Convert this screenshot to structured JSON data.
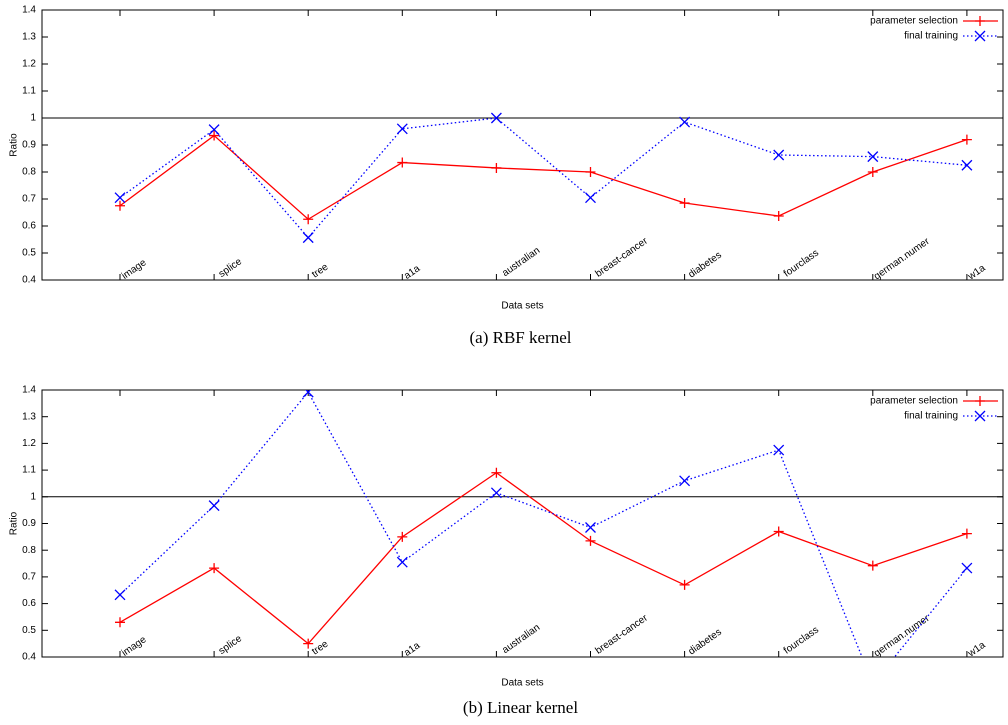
{
  "chart_data": [
    {
      "type": "line",
      "caption": "(a) RBF kernel",
      "xlabel": "Data sets",
      "ylabel": "Ratio",
      "categories": [
        "image",
        "splice",
        "tree",
        "a1a",
        "australian",
        "breast-cancer",
        "diabetes",
        "fourclass",
        "german.numer",
        "w1a"
      ],
      "series": [
        {
          "name": "parameter selection",
          "color": "#ff0000",
          "marker": "plus",
          "dash": false,
          "values": [
            0.675,
            0.935,
            0.625,
            0.835,
            0.815,
            0.8,
            0.685,
            0.637,
            0.8,
            0.92
          ]
        },
        {
          "name": "final training",
          "color": "#0000ff",
          "marker": "x",
          "dash": true,
          "values": [
            0.705,
            0.957,
            0.557,
            0.96,
            1.0,
            0.705,
            0.985,
            0.863,
            0.857,
            0.825
          ]
        }
      ],
      "ylim": [
        0.4,
        1.4
      ],
      "yticks": [
        0.4,
        0.5,
        0.6,
        0.7,
        0.8,
        0.9,
        1,
        1.1,
        1.2,
        1.3,
        1.4
      ],
      "hline": 1,
      "legend": "top-right"
    },
    {
      "type": "line",
      "caption": "(b) Linear kernel",
      "xlabel": "Data sets",
      "ylabel": "Ratio",
      "categories": [
        "image",
        "splice",
        "tree",
        "a1a",
        "australian",
        "breast-cancer",
        "diabetes",
        "fourclass",
        "german.numer",
        "w1a"
      ],
      "series": [
        {
          "name": "parameter selection",
          "color": "#ff0000",
          "marker": "plus",
          "dash": false,
          "values": [
            0.53,
            0.733,
            0.45,
            0.85,
            1.09,
            0.835,
            0.67,
            0.87,
            0.742,
            0.862
          ]
        },
        {
          "name": "final training",
          "color": "#0000ff",
          "marker": "x",
          "dash": true,
          "values": [
            0.633,
            0.967,
            1.392,
            0.755,
            1.015,
            0.885,
            1.06,
            1.175,
            0.3,
            0.733
          ]
        }
      ],
      "ylim": [
        0.4,
        1.4
      ],
      "yticks": [
        0.4,
        0.5,
        0.6,
        0.7,
        0.8,
        0.9,
        1,
        1.1,
        1.2,
        1.3,
        1.4
      ],
      "hline": 1,
      "legend": "top-right"
    }
  ]
}
